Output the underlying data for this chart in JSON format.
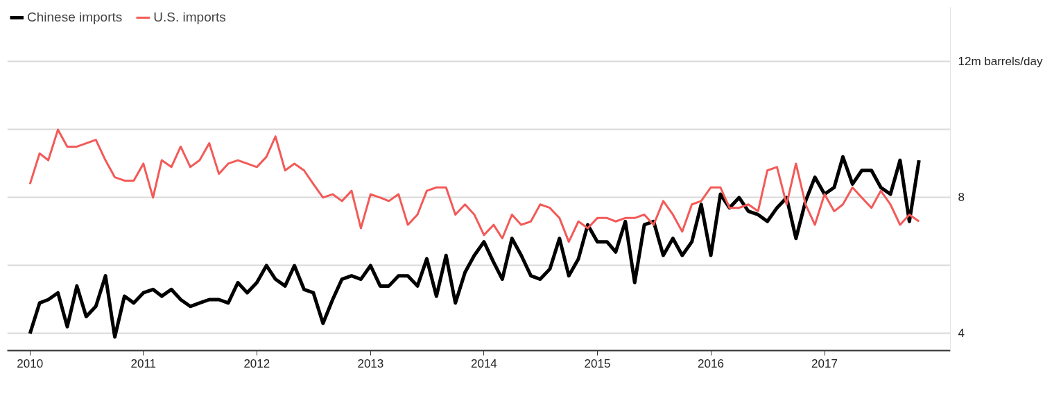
{
  "chart_data": {
    "type": "line",
    "x": [
      "2010-01",
      "2010-02",
      "2010-03",
      "2010-04",
      "2010-05",
      "2010-06",
      "2010-07",
      "2010-08",
      "2010-09",
      "2010-10",
      "2010-11",
      "2010-12",
      "2011-01",
      "2011-02",
      "2011-03",
      "2011-04",
      "2011-05",
      "2011-06",
      "2011-07",
      "2011-08",
      "2011-09",
      "2011-10",
      "2011-11",
      "2011-12",
      "2012-01",
      "2012-02",
      "2012-03",
      "2012-04",
      "2012-05",
      "2012-06",
      "2012-07",
      "2012-08",
      "2012-09",
      "2012-10",
      "2012-11",
      "2012-12",
      "2013-01",
      "2013-02",
      "2013-03",
      "2013-04",
      "2013-05",
      "2013-06",
      "2013-07",
      "2013-08",
      "2013-09",
      "2013-10",
      "2013-11",
      "2013-12",
      "2014-01",
      "2014-02",
      "2014-03",
      "2014-04",
      "2014-05",
      "2014-06",
      "2014-07",
      "2014-08",
      "2014-09",
      "2014-10",
      "2014-11",
      "2014-12",
      "2015-01",
      "2015-02",
      "2015-03",
      "2015-04",
      "2015-05",
      "2015-06",
      "2015-07",
      "2015-08",
      "2015-09",
      "2015-10",
      "2015-11",
      "2015-12",
      "2016-01",
      "2016-02",
      "2016-03",
      "2016-04",
      "2016-05",
      "2016-06",
      "2016-07",
      "2016-08",
      "2016-09",
      "2016-10",
      "2016-11",
      "2016-12",
      "2017-01",
      "2017-02",
      "2017-03",
      "2017-04",
      "2017-05",
      "2017-06",
      "2017-07",
      "2017-08",
      "2017-09",
      "2017-10",
      "2017-11"
    ],
    "series": [
      {
        "name": "Chinese imports",
        "color": "#000000",
        "values": [
          4.0,
          4.9,
          5.0,
          5.2,
          4.2,
          5.4,
          4.5,
          4.8,
          5.7,
          3.9,
          5.1,
          4.9,
          5.2,
          5.3,
          5.1,
          5.3,
          5.0,
          4.8,
          4.9,
          5.0,
          5.0,
          4.9,
          5.5,
          5.2,
          5.5,
          6.0,
          5.6,
          5.4,
          6.0,
          5.3,
          5.2,
          4.3,
          5.0,
          5.6,
          5.7,
          5.6,
          6.0,
          5.4,
          5.4,
          5.7,
          5.7,
          5.4,
          6.2,
          5.1,
          6.3,
          4.9,
          5.8,
          6.3,
          6.7,
          6.1,
          5.6,
          6.8,
          6.3,
          5.7,
          5.6,
          5.9,
          6.8,
          5.7,
          6.2,
          7.2,
          6.7,
          6.7,
          6.4,
          7.3,
          5.5,
          7.2,
          7.3,
          6.3,
          6.8,
          6.3,
          6.7,
          7.8,
          6.3,
          8.1,
          7.7,
          8.0,
          7.6,
          7.5,
          7.3,
          7.7,
          8.0,
          6.8,
          7.9,
          8.6,
          8.1,
          8.3,
          9.2,
          8.4,
          8.8,
          8.8,
          8.3,
          8.1,
          9.1,
          7.3,
          9.1
        ]
      },
      {
        "name": "U.S. imports",
        "color": "#f25a58",
        "values": [
          8.4,
          9.3,
          9.1,
          10.0,
          9.5,
          9.5,
          9.6,
          9.7,
          9.1,
          8.6,
          8.5,
          8.5,
          9.0,
          8.0,
          9.1,
          8.9,
          9.5,
          8.9,
          9.1,
          9.6,
          8.7,
          9.0,
          9.1,
          9.0,
          8.9,
          9.2,
          9.8,
          8.8,
          9.0,
          8.8,
          8.4,
          8.0,
          8.1,
          7.9,
          8.2,
          7.1,
          8.1,
          8.0,
          7.9,
          8.1,
          7.2,
          7.5,
          8.2,
          8.3,
          8.3,
          7.5,
          7.8,
          7.5,
          6.9,
          7.2,
          6.8,
          7.5,
          7.2,
          7.3,
          7.8,
          7.7,
          7.4,
          6.7,
          7.3,
          7.1,
          7.4,
          7.4,
          7.3,
          7.4,
          7.4,
          7.5,
          7.2,
          7.9,
          7.5,
          7.0,
          7.8,
          7.9,
          8.3,
          8.3,
          7.7,
          7.7,
          7.8,
          7.6,
          8.8,
          8.9,
          7.8,
          9.0,
          7.8,
          7.2,
          8.1,
          7.6,
          7.8,
          8.3,
          8.0,
          7.7,
          8.2,
          7.8,
          7.2,
          7.5,
          7.3
        ]
      }
    ],
    "xlim": [
      "2009-10-20",
      "2018-02-10"
    ],
    "xticks": [
      {
        "value": "2010",
        "label": "2010"
      },
      {
        "value": "2011",
        "label": "2011"
      },
      {
        "value": "2012",
        "label": "2012"
      },
      {
        "value": "2013",
        "label": "2013"
      },
      {
        "value": "2014",
        "label": "2014"
      },
      {
        "value": "2015",
        "label": "2015"
      },
      {
        "value": "2016",
        "label": "2016"
      },
      {
        "value": "2017",
        "label": "2017"
      }
    ],
    "ylim": [
      3.5,
      13.6
    ],
    "yticks": [
      4,
      {
        "value": 6,
        "label": null
      },
      8,
      {
        "value": 10,
        "label": null
      },
      {
        "value": 12,
        "label": "12m barrels/day"
      }
    ],
    "grid": "y",
    "legend": "top left",
    "marker": "none",
    "line_style": "solid"
  }
}
